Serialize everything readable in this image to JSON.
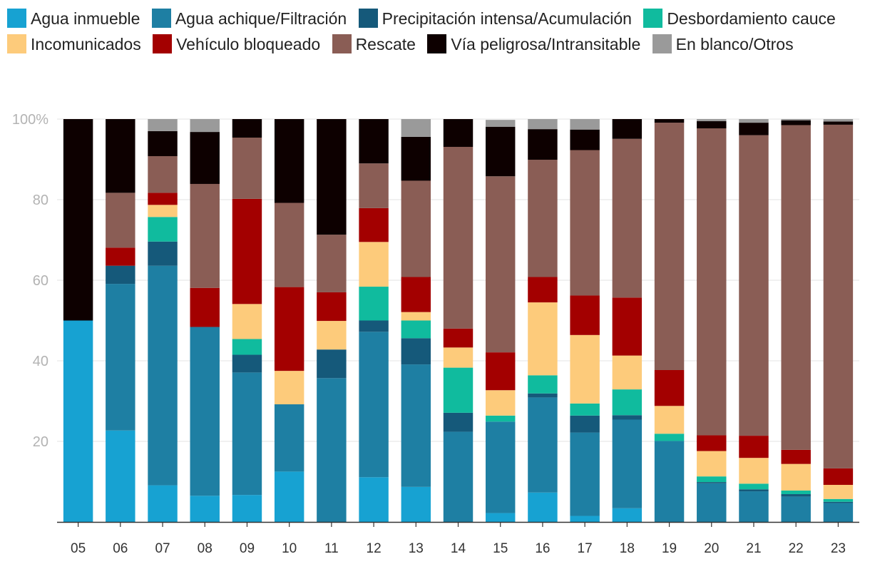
{
  "chart_data": {
    "type": "bar",
    "stacked": true,
    "normalized": true,
    "title": "",
    "xlabel": "",
    "ylabel": "",
    "ylim": [
      0,
      100
    ],
    "y_ticks": [
      "20",
      "40",
      "60",
      "80",
      "100%"
    ],
    "y_tick_values": [
      20,
      40,
      60,
      80,
      100
    ],
    "grid": "horizontal",
    "legend_position": "top",
    "categories": [
      "05",
      "06",
      "07",
      "08",
      "09",
      "10",
      "11",
      "12",
      "13",
      "14",
      "15",
      "16",
      "17",
      "18",
      "19",
      "20",
      "21",
      "22",
      "23"
    ],
    "series": [
      {
        "name": "Agua inmueble",
        "color": "#17a2d2",
        "values": [
          50,
          22.7,
          9.1,
          6.5,
          6.7,
          12.5,
          0,
          11.1,
          8.7,
          0,
          2.2,
          7.3,
          1.5,
          3.4,
          0,
          0,
          0,
          0,
          0
        ]
      },
      {
        "name": "Agua achique/Filtración",
        "color": "#1e7fa3",
        "values": [
          0,
          36.4,
          54.5,
          41.9,
          30.4,
          16.7,
          35.7,
          36.1,
          30.4,
          22.4,
          22.7,
          23.6,
          20.7,
          22,
          20.1,
          9.6,
          7.6,
          6.3,
          4.7
        ]
      },
      {
        "name": "Precipitación intensa/Acumulación",
        "color": "#15597a",
        "values": [
          0,
          4.5,
          6,
          0,
          4.4,
          0,
          7.1,
          2.8,
          6.5,
          4.7,
          0,
          1,
          4.2,
          1.1,
          0,
          0.3,
          0.5,
          0.6,
          0.3
        ]
      },
      {
        "name": "Desbordamiento cauce",
        "color": "#10bb9e",
        "values": [
          0,
          0,
          6.1,
          0,
          3.9,
          0,
          0,
          8.4,
          4.4,
          11.2,
          1.5,
          4.5,
          3,
          6.4,
          1.8,
          1.4,
          1.4,
          0.9,
          0.7
        ]
      },
      {
        "name": "Incomunicados",
        "color": "#fdcb7b",
        "values": [
          0,
          0,
          3,
          0,
          8.7,
          8.3,
          7.1,
          11.1,
          2.1,
          5,
          6.3,
          18.1,
          17,
          8.4,
          6.9,
          6.3,
          6.4,
          6.6,
          3.5
        ]
      },
      {
        "name": "Vehículo bloqueado",
        "color": "#a30000",
        "values": [
          0,
          4.5,
          3,
          9.7,
          26.1,
          20.8,
          7.1,
          8.4,
          8.7,
          4.7,
          9.4,
          6.3,
          9.8,
          14.4,
          8.9,
          3.9,
          5.5,
          3.5,
          4.1
        ]
      },
      {
        "name": "Rescate",
        "color": "#8a5d55",
        "values": [
          0,
          13.6,
          9.1,
          25.8,
          15.2,
          20.9,
          14.3,
          11.1,
          23.9,
          45.1,
          43.7,
          29.1,
          36.1,
          39.4,
          61.4,
          76.2,
          74.6,
          80.6,
          85.3
        ]
      },
      {
        "name": "Vía peligrosa/Intransitable",
        "color": "#0d0000",
        "values": [
          50,
          18.3,
          6.2,
          12.9,
          4.6,
          20.8,
          28.7,
          11,
          10.9,
          6.9,
          12.3,
          7.6,
          5.1,
          4.9,
          0.9,
          1.8,
          3.1,
          1.2,
          0.8
        ]
      },
      {
        "name": "En blanco/Otros",
        "color": "#9a9a9a",
        "values": [
          0,
          0,
          3,
          3.2,
          0,
          0,
          0,
          0,
          4.4,
          0,
          1.7,
          2.5,
          2.6,
          0,
          0,
          0.5,
          0.9,
          0.3,
          0.6
        ]
      }
    ]
  }
}
